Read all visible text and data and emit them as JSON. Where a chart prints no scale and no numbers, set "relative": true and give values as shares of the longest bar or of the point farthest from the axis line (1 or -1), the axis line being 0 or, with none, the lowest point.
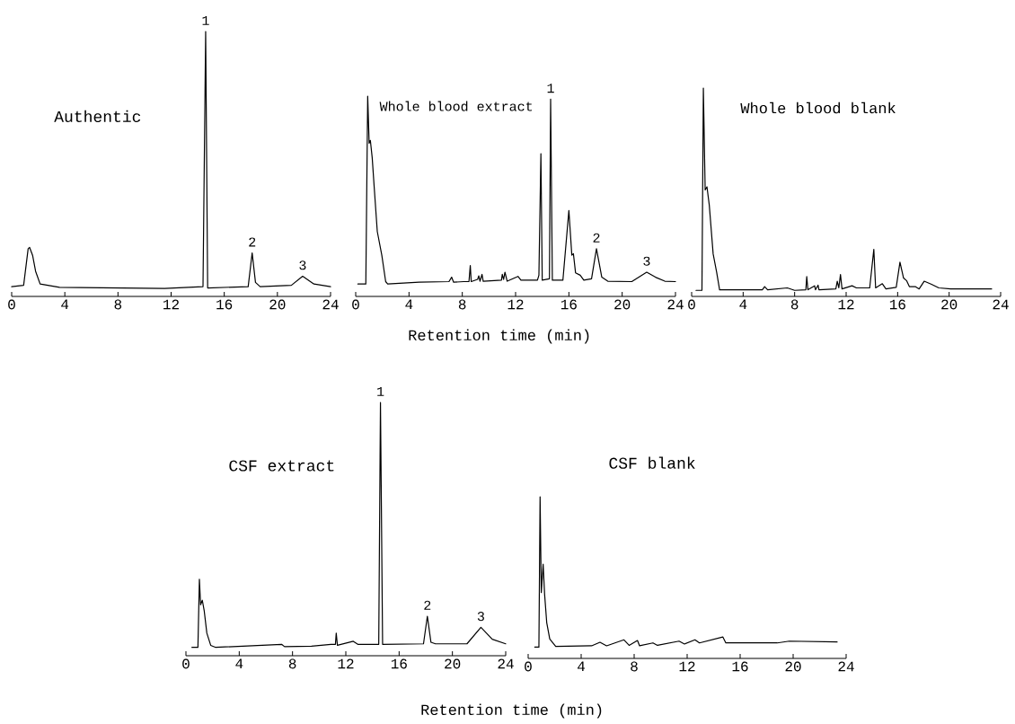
{
  "chart_data": [
    {
      "type": "line",
      "relative": true,
      "title": "Authentic",
      "color": "#000000",
      "xlim": [
        0,
        24
      ],
      "xticks": [
        0,
        4,
        8,
        12,
        16,
        20,
        24
      ],
      "x": [
        0,
        0.9,
        1.24,
        1.35,
        1.58,
        1.8,
        2.14,
        3.6,
        11.5,
        14.4,
        14.6,
        14.75,
        17.8,
        18.1,
        18.35,
        18.7,
        21.05,
        21.9,
        22.75,
        24
      ],
      "values": [
        0.037,
        0.042,
        0.18,
        0.185,
        0.154,
        0.095,
        0.047,
        0.034,
        0.03,
        0.037,
        1,
        0.032,
        0.037,
        0.164,
        0.053,
        0.037,
        0.042,
        0.076,
        0.047,
        0.037
      ],
      "annotations": [
        {
          "text": "1",
          "x": 14.6,
          "y": 1
        },
        {
          "text": "2",
          "x": 18.1,
          "y": 0.164
        },
        {
          "text": "3",
          "x": 21.9,
          "y": 0.076
        }
      ]
    },
    {
      "type": "line",
      "relative": true,
      "title": "Whole blood extract",
      "xlabel": "Retention time (min)",
      "color": "#000000",
      "xlim": [
        0,
        24
      ],
      "xticks": [
        0,
        4,
        8,
        12,
        16,
        20,
        24
      ],
      "x": [
        0.16,
        0.76,
        0.9,
        1.01,
        1.1,
        1.24,
        1.39,
        1.62,
        1.96,
        2.25,
        2.4,
        4.76,
        7.0,
        7.2,
        7.35,
        8.1,
        8.5,
        8.6,
        8.67,
        9.15,
        9.24,
        9.33,
        9.48,
        9.57,
        10.94,
        11.0,
        11.1,
        11.2,
        11.37,
        12.18,
        12.4,
        13.64,
        13.75,
        13.9,
        14.0,
        14.54,
        14.63,
        14.76,
        15.55,
        16.0,
        16.22,
        16.34,
        16.5,
        16.85,
        17.12,
        17.7,
        18.07,
        18.47,
        18.92,
        20.72,
        21.84,
        22.5,
        23.2,
        24
      ],
      "values": [
        0.062,
        0.062,
        1,
        0.765,
        0.779,
        0.691,
        0.544,
        0.324,
        0.206,
        0.074,
        0.062,
        0.071,
        0.074,
        0.096,
        0.071,
        0.074,
        0.074,
        0.154,
        0.074,
        0.085,
        0.103,
        0.076,
        0.11,
        0.076,
        0.081,
        0.11,
        0.085,
        0.121,
        0.076,
        0.1,
        0.081,
        0.081,
        0.106,
        0.713,
        0.081,
        0.088,
        0.985,
        0.081,
        0.081,
        0.429,
        0.206,
        0.213,
        0.118,
        0.106,
        0.081,
        0.088,
        0.238,
        0.096,
        0.076,
        0.074,
        0.121,
        0.096,
        0.076,
        0.074
      ],
      "annotations": [
        {
          "text": "1",
          "x": 14.63,
          "y": 0.985
        },
        {
          "text": "2",
          "x": 18.07,
          "y": 0.238
        },
        {
          "text": "3",
          "x": 21.84,
          "y": 0.121
        }
      ]
    },
    {
      "type": "line",
      "relative": true,
      "title": "Whole blood blank",
      "color": "#000000",
      "xlim": [
        0,
        24
      ],
      "xticks": [
        0,
        4,
        8,
        12,
        16,
        20,
        24
      ],
      "x": [
        0.34,
        0.8,
        0.91,
        1.05,
        1.19,
        1.37,
        1.67,
        1.94,
        2.17,
        5.49,
        5.67,
        5.9,
        7.43,
        8.0,
        8.87,
        8.94,
        9.03,
        9.55,
        9.62,
        9.82,
        9.89,
        11.2,
        11.31,
        11.43,
        11.56,
        11.68,
        12.46,
        12.8,
        13.83,
        14.15,
        14.29,
        14.81,
        15.09,
        15.89,
        16.18,
        16.46,
        16.69,
        16.91,
        17.37,
        17.67,
        18.06,
        18.63,
        19.2,
        20.11,
        23.3
      ],
      "values": [
        0.029,
        0.029,
        1,
        0.511,
        0.526,
        0.438,
        0.204,
        0.117,
        0.032,
        0.032,
        0.047,
        0.032,
        0.041,
        0.029,
        0.032,
        0.095,
        0.032,
        0.051,
        0.032,
        0.054,
        0.032,
        0.036,
        0.073,
        0.041,
        0.105,
        0.036,
        0.051,
        0.041,
        0.041,
        0.226,
        0.041,
        0.061,
        0.036,
        0.044,
        0.164,
        0.088,
        0.076,
        0.047,
        0.047,
        0.036,
        0.073,
        0.058,
        0.041,
        0.036,
        0.036
      ]
    },
    {
      "type": "line",
      "relative": true,
      "title": "CSF extract",
      "xlabel": "Retention time (min)",
      "color": "#000000",
      "xlim": [
        0,
        24
      ],
      "xticks": [
        0,
        4,
        8,
        12,
        16,
        20,
        24
      ],
      "x": [
        0.45,
        0.9,
        1.01,
        1.1,
        1.23,
        1.37,
        1.57,
        1.86,
        2.24,
        7.18,
        7.4,
        9.42,
        10.88,
        11.22,
        11.28,
        11.37,
        12.56,
        12.9,
        14.47,
        14.6,
        14.76,
        17.83,
        18.12,
        18.39,
        18.73,
        21.09,
        22.14,
        22.99,
        24
      ],
      "values": [
        0.033,
        0.033,
        0.302,
        0.201,
        0.219,
        0.178,
        0.089,
        0.041,
        0.033,
        0.045,
        0.036,
        0.038,
        0.045,
        0.045,
        0.089,
        0.041,
        0.057,
        0.045,
        0.045,
        1,
        0.045,
        0.047,
        0.156,
        0.053,
        0.047,
        0.047,
        0.112,
        0.065,
        0.047
      ],
      "annotations": [
        {
          "text": "1",
          "x": 14.6,
          "y": 1
        },
        {
          "text": "2",
          "x": 18.12,
          "y": 0.156
        },
        {
          "text": "3",
          "x": 22.14,
          "y": 0.112
        }
      ]
    },
    {
      "type": "line",
      "relative": true,
      "title": "CSF blank",
      "color": "#000000",
      "xlim": [
        0,
        24
      ],
      "xticks": [
        0,
        4,
        8,
        12,
        16,
        20,
        24
      ],
      "x": [
        0.5,
        0.81,
        0.9,
        0.99,
        1.13,
        1.24,
        1.4,
        1.63,
        2.08,
        4.79,
        5.42,
        5.92,
        7.23,
        7.62,
        8.25,
        8.41,
        9.42,
        9.76,
        11.39,
        11.8,
        12.59,
        12.93,
        14.69,
        14.92,
        18.8,
        19.71,
        23.32
      ],
      "values": [
        0.07,
        0.07,
        1,
        0.407,
        0.583,
        0.398,
        0.222,
        0.12,
        0.074,
        0.078,
        0.1,
        0.078,
        0.115,
        0.081,
        0.111,
        0.078,
        0.096,
        0.081,
        0.107,
        0.089,
        0.115,
        0.096,
        0.133,
        0.096,
        0.096,
        0.107,
        0.102
      ]
    }
  ]
}
